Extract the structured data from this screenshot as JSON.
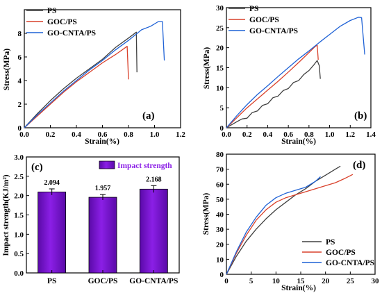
{
  "colors": {
    "ps": "#404040",
    "goc": "#d9412b",
    "gocnta": "#1f62d6",
    "bar": "#8b1fe6",
    "bar_dark": "#5a0aa8"
  },
  "chart_data": [
    {
      "panel": "(a)",
      "type": "line",
      "xlabel": "Strain(%)",
      "ylabel": "Stress(MPa)",
      "xlim": [
        0,
        1.2
      ],
      "ylim": [
        0,
        10
      ],
      "xticks": [
        0.0,
        0.2,
        0.4,
        0.6,
        0.8,
        1.0,
        1.2
      ],
      "yticks": [
        0,
        2,
        4,
        6,
        8
      ],
      "xtick_labels": [
        "0.0",
        "0.2",
        "0.4",
        "0.6",
        "0.8",
        "1.0",
        "1.2"
      ],
      "ytick_labels": [
        "0",
        "2",
        "4",
        "6",
        "8"
      ],
      "legend_position": "top-left",
      "series": [
        {
          "name": "PS",
          "color_key": "ps",
          "points": [
            [
              0,
              0
            ],
            [
              0.1,
              1.2
            ],
            [
              0.2,
              2.3
            ],
            [
              0.3,
              3.3
            ],
            [
              0.4,
              4.2
            ],
            [
              0.5,
              5.0
            ],
            [
              0.6,
              5.8
            ],
            [
              0.7,
              6.8
            ],
            [
              0.8,
              7.6
            ],
            [
              0.86,
              8.1
            ],
            [
              0.865,
              4.7
            ]
          ]
        },
        {
          "name": "GOC/PS",
          "color_key": "goc",
          "points": [
            [
              0,
              0
            ],
            [
              0.1,
              1.0
            ],
            [
              0.2,
              2.0
            ],
            [
              0.3,
              3.0
            ],
            [
              0.4,
              3.9
            ],
            [
              0.5,
              4.7
            ],
            [
              0.6,
              5.5
            ],
            [
              0.7,
              6.2
            ],
            [
              0.79,
              6.9
            ],
            [
              0.8,
              4.1
            ]
          ]
        },
        {
          "name": "GO-CNTA/PS",
          "color_key": "gocnta",
          "points": [
            [
              0,
              0
            ],
            [
              0.1,
              1.1
            ],
            [
              0.2,
              2.1
            ],
            [
              0.3,
              3.1
            ],
            [
              0.4,
              4.0
            ],
            [
              0.5,
              4.9
            ],
            [
              0.6,
              5.7
            ],
            [
              0.7,
              6.6
            ],
            [
              0.8,
              7.4
            ],
            [
              0.9,
              8.3
            ],
            [
              0.97,
              8.6
            ],
            [
              1.03,
              9.0
            ],
            [
              1.06,
              9.0
            ],
            [
              1.075,
              5.7
            ]
          ]
        }
      ]
    },
    {
      "panel": "(b)",
      "type": "line",
      "xlabel": "Strain(%)",
      "ylabel": "Stress(MPa)",
      "xlim": [
        0,
        1.4
      ],
      "ylim": [
        0,
        30
      ],
      "xticks": [
        0.0,
        0.2,
        0.4,
        0.6,
        0.8,
        1.0,
        1.2,
        1.4
      ],
      "yticks": [
        0,
        5,
        10,
        15,
        20,
        25,
        30
      ],
      "xtick_labels": [
        "0.0",
        "0.2",
        "0.4",
        "0.6",
        "0.8",
        "1.0",
        "1.2",
        "1.4"
      ],
      "ytick_labels": [
        "0",
        "5",
        "10",
        "15",
        "20",
        "25",
        "30"
      ],
      "legend_position": "top-left",
      "series": [
        {
          "name": "PS",
          "color_key": "ps",
          "points": [
            [
              0,
              0
            ],
            [
              0.1,
              1.5
            ],
            [
              0.15,
              2.2
            ],
            [
              0.2,
              2.4
            ],
            [
              0.25,
              3.8
            ],
            [
              0.3,
              4.2
            ],
            [
              0.35,
              5.6
            ],
            [
              0.4,
              6.0
            ],
            [
              0.45,
              7.5
            ],
            [
              0.5,
              7.9
            ],
            [
              0.55,
              9.3
            ],
            [
              0.6,
              9.8
            ],
            [
              0.65,
              11.3
            ],
            [
              0.7,
              11.8
            ],
            [
              0.75,
              13.3
            ],
            [
              0.8,
              14.3
            ],
            [
              0.85,
              15.8
            ],
            [
              0.88,
              16.8
            ],
            [
              0.9,
              15.5
            ],
            [
              0.91,
              12.2
            ]
          ]
        },
        {
          "name": "GOC/PS",
          "color_key": "goc",
          "points": [
            [
              0,
              0
            ],
            [
              0.1,
              2.5
            ],
            [
              0.2,
              5.0
            ],
            [
              0.3,
              7.2
            ],
            [
              0.4,
              9.4
            ],
            [
              0.5,
              11.6
            ],
            [
              0.6,
              13.9
            ],
            [
              0.7,
              16.3
            ],
            [
              0.8,
              18.8
            ],
            [
              0.86,
              20.3
            ],
            [
              0.88,
              20.6
            ],
            [
              0.89,
              17.0
            ]
          ]
        },
        {
          "name": "GO-CNTA/PS",
          "color_key": "gocnta",
          "points": [
            [
              0,
              0
            ],
            [
              0.1,
              3.0
            ],
            [
              0.2,
              5.8
            ],
            [
              0.3,
              8.3
            ],
            [
              0.4,
              10.5
            ],
            [
              0.5,
              12.8
            ],
            [
              0.6,
              15.0
            ],
            [
              0.7,
              17.2
            ],
            [
              0.8,
              19.2
            ],
            [
              0.9,
              21.3
            ],
            [
              1.0,
              23.3
            ],
            [
              1.1,
              25.3
            ],
            [
              1.2,
              26.8
            ],
            [
              1.28,
              27.6
            ],
            [
              1.31,
              27.5
            ],
            [
              1.34,
              18.3
            ]
          ]
        }
      ]
    },
    {
      "panel": "(c)",
      "type": "bar",
      "ylabel": "Impact strength(KJ/m²)",
      "categories": [
        "PS",
        "GOC/PS",
        "GO-CNTA/PS"
      ],
      "values": [
        2.094,
        1.957,
        2.168
      ],
      "value_labels": [
        "2.094",
        "1.957",
        "2.168"
      ],
      "errors": [
        0.08,
        0.07,
        0.09
      ],
      "ylim": [
        0,
        3.0
      ],
      "yticks": [
        0.0,
        0.5,
        1.0,
        1.5,
        2.0,
        2.5,
        3.0
      ],
      "ytick_labels": [
        "0.0",
        "0.5",
        "1.0",
        "1.5",
        "2.0",
        "2.5",
        "3.0"
      ],
      "legend": "Impact strength",
      "legend_position": "top-right"
    },
    {
      "panel": "(d)",
      "type": "line",
      "xlabel": "Strain(%)",
      "ylabel": "Stress(MPa)",
      "xlim": [
        0,
        30
      ],
      "ylim": [
        0,
        80
      ],
      "xticks": [
        0,
        5,
        10,
        15,
        20,
        25,
        30
      ],
      "yticks": [
        0,
        10,
        20,
        30,
        40,
        50,
        60,
        70,
        80
      ],
      "xtick_labels": [
        "0",
        "5",
        "10",
        "15",
        "20",
        "25",
        "30"
      ],
      "ytick_labels": [
        "0",
        "10",
        "20",
        "30",
        "40",
        "50",
        "60",
        "70",
        "80"
      ],
      "legend_position": "bottom-right",
      "series": [
        {
          "name": "PS",
          "color_key": "ps",
          "points": [
            [
              0,
              0
            ],
            [
              2,
              12
            ],
            [
              4,
              22
            ],
            [
              6,
              30
            ],
            [
              8,
              37
            ],
            [
              10,
              43
            ],
            [
              12,
              48
            ],
            [
              14,
              53
            ],
            [
              16,
              57
            ],
            [
              18,
              62
            ],
            [
              20,
              66
            ],
            [
              22,
              70
            ],
            [
              23,
              72
            ]
          ]
        },
        {
          "name": "GOC/PS",
          "color_key": "goc",
          "points": [
            [
              0,
              0
            ],
            [
              2,
              14
            ],
            [
              4,
              26
            ],
            [
              6,
              36
            ],
            [
              8,
              43
            ],
            [
              10,
              48
            ],
            [
              12,
              51
            ],
            [
              14,
              53
            ],
            [
              16,
              55
            ],
            [
              18,
              57
            ],
            [
              20,
              59
            ],
            [
              22,
              61
            ],
            [
              24,
              64
            ],
            [
              25.5,
              66.5
            ]
          ]
        },
        {
          "name": "GO-CNTA/PS",
          "color_key": "gocnta",
          "points": [
            [
              0,
              0
            ],
            [
              2,
              15
            ],
            [
              4,
              28
            ],
            [
              6,
              38
            ],
            [
              8,
              46
            ],
            [
              10,
              51
            ],
            [
              12,
              54
            ],
            [
              14,
              56
            ],
            [
              16,
              58
            ],
            [
              18,
              62
            ],
            [
              19,
              65
            ]
          ]
        }
      ]
    }
  ]
}
